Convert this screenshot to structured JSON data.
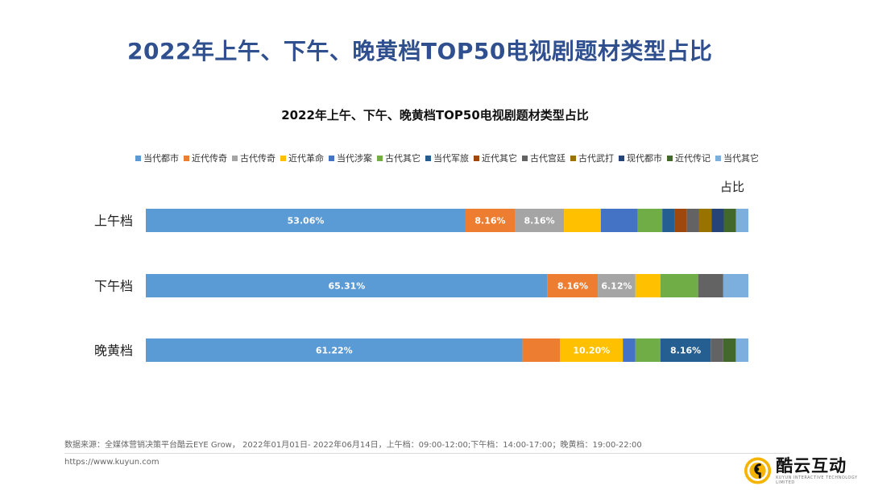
{
  "page_title": "2022年上午、下午、晚黄档TOP50电视剧题材类型占比",
  "chart_data": {
    "type": "bar",
    "orientation": "horizontal",
    "stacked": true,
    "normalized": true,
    "title": "2022年上午、下午、晚黄档TOP50电视剧题材类型占比",
    "xlabel": "占比",
    "ylabel": "",
    "xlim": [
      0,
      100
    ],
    "legend_position": "top",
    "grid": false,
    "categories": [
      "上午档",
      "下午档",
      "晚黄档"
    ],
    "series": [
      {
        "name": "当代都市",
        "color": "#5b9bd5",
        "values": [
          53.06,
          65.31,
          61.22
        ],
        "labels": [
          "53.06%",
          "65.31%",
          "61.22%"
        ]
      },
      {
        "name": "近代传奇",
        "color": "#ed7d31",
        "values": [
          8.16,
          8.16,
          6.12
        ],
        "labels": [
          "8.16%",
          "8.16%",
          ""
        ]
      },
      {
        "name": "古代传奇",
        "color": "#a5a5a5",
        "values": [
          8.16,
          6.12,
          0
        ],
        "labels": [
          "8.16%",
          "6.12%",
          ""
        ]
      },
      {
        "name": "近代革命",
        "color": "#ffc000",
        "values": [
          6.12,
          4.08,
          10.2
        ],
        "labels": [
          "",
          "",
          "10.20%"
        ]
      },
      {
        "name": "当代涉案",
        "color": "#4472c4",
        "values": [
          6.12,
          0,
          2.04
        ],
        "labels": [
          "",
          "",
          ""
        ]
      },
      {
        "name": "古代其它",
        "color": "#70ad47",
        "values": [
          4.08,
          6.12,
          4.08
        ],
        "labels": [
          "",
          "",
          ""
        ]
      },
      {
        "name": "当代军旅",
        "color": "#255e91",
        "values": [
          2.04,
          0,
          8.16
        ],
        "labels": [
          "",
          "",
          "8.16%"
        ]
      },
      {
        "name": "近代其它",
        "color": "#9e480e",
        "values": [
          2.04,
          0,
          0
        ],
        "labels": [
          "",
          "",
          ""
        ]
      },
      {
        "name": "古代宫廷",
        "color": "#636363",
        "values": [
          2.04,
          4.08,
          2.04
        ],
        "labels": [
          "",
          "",
          ""
        ]
      },
      {
        "name": "古代武打",
        "color": "#997300",
        "values": [
          2.04,
          0,
          0
        ],
        "labels": [
          "",
          "",
          ""
        ]
      },
      {
        "name": "现代都市",
        "color": "#264478",
        "values": [
          2.04,
          0,
          0
        ],
        "labels": [
          "",
          "",
          ""
        ]
      },
      {
        "name": "近代传记",
        "color": "#43682b",
        "values": [
          2.04,
          0,
          2.04
        ],
        "labels": [
          "",
          "",
          ""
        ]
      },
      {
        "name": "当代其它",
        "color": "#7cafdd",
        "values": [
          2.04,
          4.08,
          2.04
        ],
        "labels": [
          "",
          "",
          ""
        ]
      }
    ]
  },
  "source_text": "数据来源：全媒体营销决策平台酷云EYE Grow， 2022年01月01日- 2022年06月14日，上午档：09:00-12:00;下午档：14:00-17:00；晚黄档：19:00-22:00",
  "url": "https://www.kuyun.com",
  "logo": {
    "name": "酷云互动",
    "sub": "KUYUN INTERACTIVE TECHNOLOGY LIMITED",
    "icon": "kuyun-logo-icon",
    "accent": "#f5b400"
  }
}
